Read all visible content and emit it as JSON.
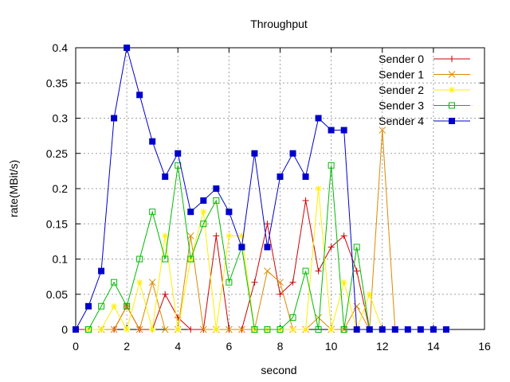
{
  "chart_data": {
    "type": "line",
    "title": "Throughput",
    "xlabel": "second",
    "ylabel": "rate(MBit/s)",
    "xlim": [
      0,
      16
    ],
    "ylim": [
      0,
      0.4
    ],
    "xticks": [
      0,
      2,
      4,
      6,
      8,
      10,
      12,
      14,
      16
    ],
    "yticks": [
      0,
      0.05,
      0.1,
      0.15,
      0.2,
      0.25,
      0.3,
      0.35,
      0.4
    ],
    "xtick_labels": [
      "0",
      "2",
      "4",
      "6",
      "8",
      "10",
      "12",
      "14",
      "16"
    ],
    "ytick_labels": [
      "0",
      "0.05",
      "0.1",
      "0.15",
      "0.2",
      "0.25",
      "0.3",
      "0.35",
      "0.4"
    ],
    "grid": true,
    "legend_position": "top-right",
    "series": [
      {
        "name": "Sender 0",
        "color": "#cc0000",
        "marker": "plus",
        "x": [
          0,
          0.5,
          1,
          1.5,
          2,
          2.5,
          3,
          3.5,
          4,
          4.5,
          5,
          5.5,
          6,
          6.5,
          7,
          7.5,
          8,
          8.5,
          9,
          9.5,
          10,
          10.5,
          11,
          11.5
        ],
        "y": [
          0,
          0,
          0,
          0,
          0.033,
          0,
          0,
          0.05,
          0.017,
          0,
          0,
          0.133,
          0,
          0,
          0.067,
          0.15,
          0.05,
          0.067,
          0.183,
          0.083,
          0.117,
          0.133,
          0.083,
          0
        ]
      },
      {
        "name": "Sender 1",
        "color": "#dd8800",
        "marker": "cross",
        "x": [
          0.5,
          1,
          1.5,
          2,
          2.5,
          3,
          3.5,
          4,
          4.5,
          5,
          5.5,
          6,
          6.5,
          7,
          7.5,
          8,
          8.5,
          9,
          9.5,
          10,
          10.5,
          11,
          11.5,
          12,
          12.5
        ],
        "y": [
          0,
          0,
          0,
          0.033,
          0,
          0.067,
          0,
          0,
          0.133,
          0,
          0,
          0,
          0,
          0,
          0.083,
          0.067,
          0,
          0,
          0.017,
          0,
          0,
          0.033,
          0,
          0.283,
          0
        ]
      },
      {
        "name": "Sender 2",
        "color": "#ffee00",
        "marker": "star",
        "x": [
          0.5,
          1,
          1.5,
          2,
          2.5,
          3,
          3.5,
          4,
          4.5,
          5,
          5.5,
          6,
          6.5,
          7,
          7.5,
          8,
          8.5,
          9,
          9.5,
          10,
          10.5,
          11,
          11.5,
          12
        ],
        "y": [
          0,
          0,
          0.033,
          0,
          0.067,
          0,
          0.133,
          0,
          0.1,
          0.167,
          0,
          0.133,
          0.133,
          0,
          0,
          0,
          0,
          0,
          0.2,
          0,
          0.067,
          0,
          0.05,
          0
        ]
      },
      {
        "name": "Sender 3",
        "color": "#00bb00",
        "marker": "square-open",
        "x": [
          0.5,
          1,
          1.5,
          2,
          2.5,
          3,
          3.5,
          4,
          4.5,
          5,
          5.5,
          6,
          6.5,
          7,
          7.5,
          8,
          8.5,
          9,
          9.5,
          10,
          10.5,
          11,
          11.5
        ],
        "y": [
          0,
          0.033,
          0.067,
          0.033,
          0.1,
          0.167,
          0.1,
          0.233,
          0.1,
          0.15,
          0.183,
          0.067,
          0.117,
          0,
          0,
          0,
          0.017,
          0.083,
          0,
          0.233,
          0,
          0.117,
          0
        ]
      },
      {
        "name": "Sender 4",
        "color": "#0000cc",
        "marker": "square-filled",
        "x": [
          0,
          0.5,
          1,
          1.5,
          2,
          2.5,
          3,
          3.5,
          4,
          4.5,
          5,
          5.5,
          6,
          6.5,
          7,
          7.5,
          8,
          8.5,
          9,
          9.5,
          10,
          10.5,
          11,
          11.5,
          12,
          12.5,
          13,
          13.5,
          14,
          14.5
        ],
        "y": [
          0,
          0.033,
          0.083,
          0.3,
          0.4,
          0.333,
          0.267,
          0.217,
          0.25,
          0.167,
          0.183,
          0.2,
          0.167,
          0.117,
          0.25,
          0.117,
          0.217,
          0.25,
          0.217,
          0.3,
          0.283,
          0.283,
          0,
          0,
          0,
          0,
          0,
          0,
          0,
          0
        ]
      }
    ]
  }
}
